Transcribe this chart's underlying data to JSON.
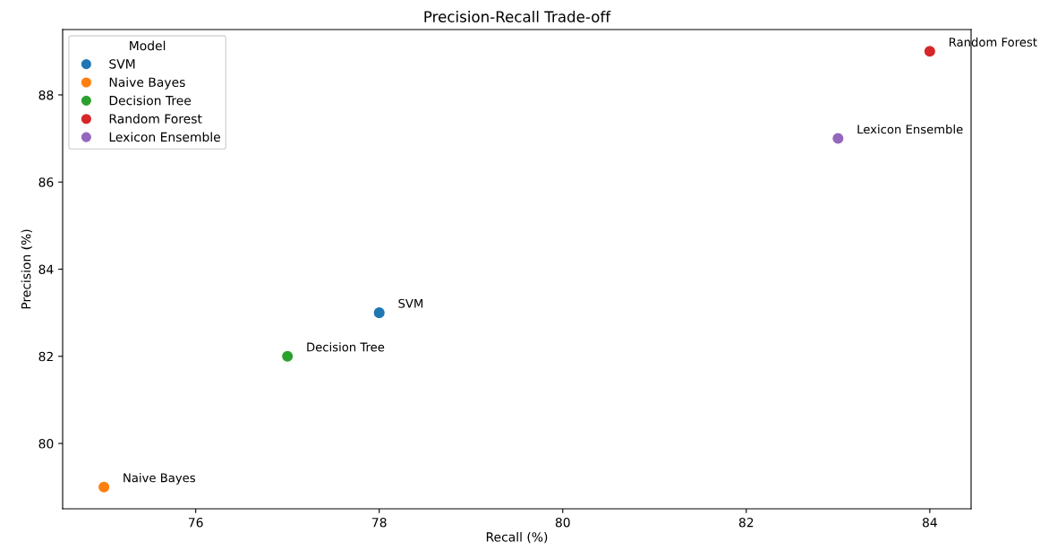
{
  "chart_data": {
    "type": "scatter",
    "title": "Precision-Recall Trade-off",
    "xlabel": "Recall (%)",
    "ylabel": "Precision (%)",
    "legend_title": "Model",
    "legend": "top left",
    "marker": "circle",
    "grid": false,
    "series": [
      {
        "name": "SVM",
        "color": "#1f77b4",
        "x": [
          78
        ],
        "values": [
          83
        ]
      },
      {
        "name": "Naive Bayes",
        "color": "#ff7f0e",
        "x": [
          75
        ],
        "values": [
          79
        ]
      },
      {
        "name": "Decision Tree",
        "color": "#2ca02c",
        "x": [
          77
        ],
        "values": [
          82
        ]
      },
      {
        "name": "Random Forest",
        "color": "#d62728",
        "x": [
          84
        ],
        "values": [
          89
        ]
      },
      {
        "name": "Lexicon Ensemble",
        "color": "#9467bd",
        "x": [
          83
        ],
        "values": [
          87
        ]
      }
    ],
    "annotations": [
      {
        "text": "SVM",
        "x": 78,
        "y": 83
      },
      {
        "text": "Naive Bayes",
        "x": 75,
        "y": 79
      },
      {
        "text": "Decision Tree",
        "x": 77,
        "y": 82
      },
      {
        "text": "Random Forest",
        "x": 84,
        "y": 89
      },
      {
        "text": "Lexicon Ensemble",
        "x": 83,
        "y": 87
      }
    ],
    "xlim": [
      74.55,
      84.45
    ],
    "ylim": [
      78.5,
      89.5
    ],
    "xticks": [
      76,
      78,
      80,
      82,
      84
    ],
    "yticks": [
      80,
      82,
      84,
      86,
      88
    ]
  }
}
